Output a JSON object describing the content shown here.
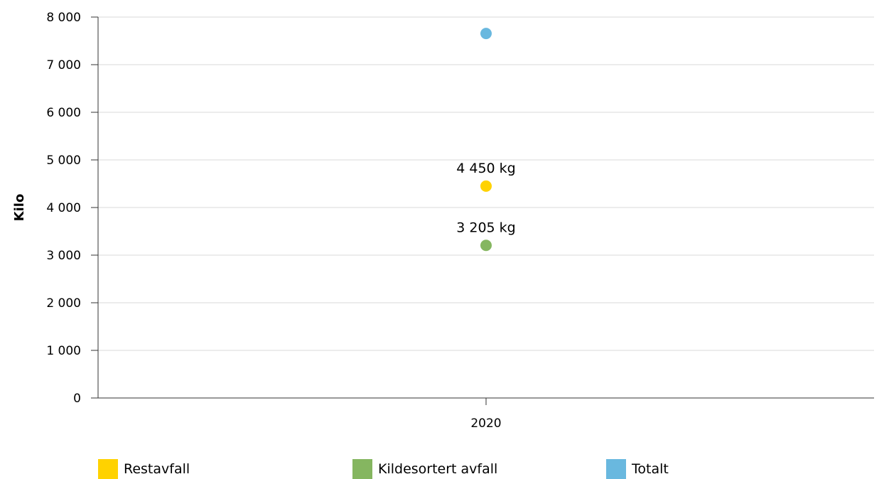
{
  "chart_data": {
    "type": "scatter",
    "categories": [
      "2020"
    ],
    "ylabel": "Kilo",
    "ylim": [
      0,
      8000
    ],
    "yticks": [
      {
        "value": 0,
        "label": "0"
      },
      {
        "value": 1000,
        "label": "1 000"
      },
      {
        "value": 2000,
        "label": "2 000"
      },
      {
        "value": 3000,
        "label": "3 000"
      },
      {
        "value": 4000,
        "label": "4 000"
      },
      {
        "value": 5000,
        "label": "5 000"
      },
      {
        "value": 6000,
        "label": "6 000"
      },
      {
        "value": 7000,
        "label": "7 000"
      },
      {
        "value": 8000,
        "label": "8 000"
      }
    ],
    "grid": true,
    "legend_position": "bottom",
    "series": [
      {
        "name": "Restavfall",
        "color": "#ffd200",
        "values": [
          4450
        ],
        "labels": [
          "4 450 kg"
        ]
      },
      {
        "name": "Kildesortert avfall",
        "color": "#85b660",
        "values": [
          3205
        ],
        "labels": [
          "3 205 kg"
        ]
      },
      {
        "name": "Totalt",
        "color": "#69b8df",
        "values": [
          7655
        ],
        "labels": [
          ""
        ]
      }
    ]
  }
}
